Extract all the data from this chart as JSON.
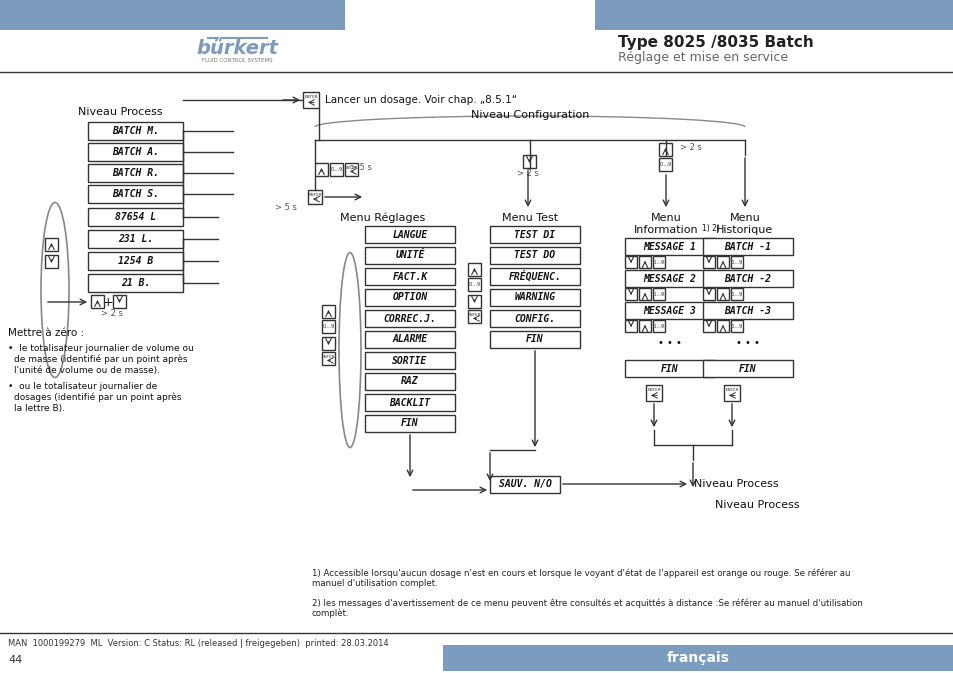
{
  "title_bold": "Type 8025 /8035 Batch",
  "title_sub": "Réglage et mise en service",
  "header_color": "#7b9bbf",
  "bg_color": "#ffffff",
  "page_num": "44",
  "lang_label": "français",
  "footer_text": "MAN  1000199279  ML  Version: C Status: RL (released | freigegeben)  printed: 28.03.2014",
  "footnote1": "1) Accessible lorsqu'aucun dosage n'est en cours et lorsque le voyant d'état de l'appareil est orange ou rouge. Se référer au\nmanuel d'utilisation complet.",
  "footnote2": "2) les messages d'avertissement de ce menu peuvent être consultés et acquittés à distance :Se référer au manuel d'utilisation\ncomplèt.",
  "left_title": "Niveau Process",
  "left_items": [
    "BATCH M.",
    "BATCH A.",
    "BATCH R.",
    "BATCH S.",
    "87654 L",
    "231 L.",
    "1254 B",
    "21 B."
  ],
  "label_mettre": "Mettre à zéro :",
  "bullet1": "le totalisateur journalier de volume ou\nde masse (identifié par un point après\nl'unité de volume ou de masse).",
  "bullet2": "ou le totalisateur journalier de\ndosages (identifié par un point après\nla lettre B).",
  "menu_reglages_title": "Menu Réglages",
  "menu_reglages_items": [
    "LANGUE",
    "UNITÉ",
    "FACT.K",
    "OPTION",
    "CORREC.J.",
    "ALARME",
    "SORTIE",
    "RAZ",
    "BACKLIT",
    "FIN"
  ],
  "menu_test_title": "Menu Test",
  "menu_test_items": [
    "TEST DI",
    "TEST DO",
    "FRÉQUENC.",
    "WARNING",
    "CONFIG.",
    "FIN"
  ],
  "menu_info_title": "Menu\nInformation",
  "menu_info_super": "1) 2)",
  "menu_info_items": [
    "MESSAGE 1",
    "MESSAGE 2",
    "MESSAGE 3",
    "...",
    "FIN"
  ],
  "menu_hist_title": "Menu\nHistorique",
  "menu_hist_items": [
    "BATCH -1",
    "BATCH -2",
    "BATCH -3",
    "...",
    "FIN"
  ],
  "niveau_config": "Niveau Configuration",
  "enter_label": "Lancer un dosage. Voir chap. „8.5.1“",
  "sauv_label": "SAUV. N/O",
  "niveau_process_label": "Niveau Process",
  "header_bar_color": "#7b9bbf",
  "line_color": "#333333",
  "text_color": "#111111",
  "gray_color": "#666666"
}
